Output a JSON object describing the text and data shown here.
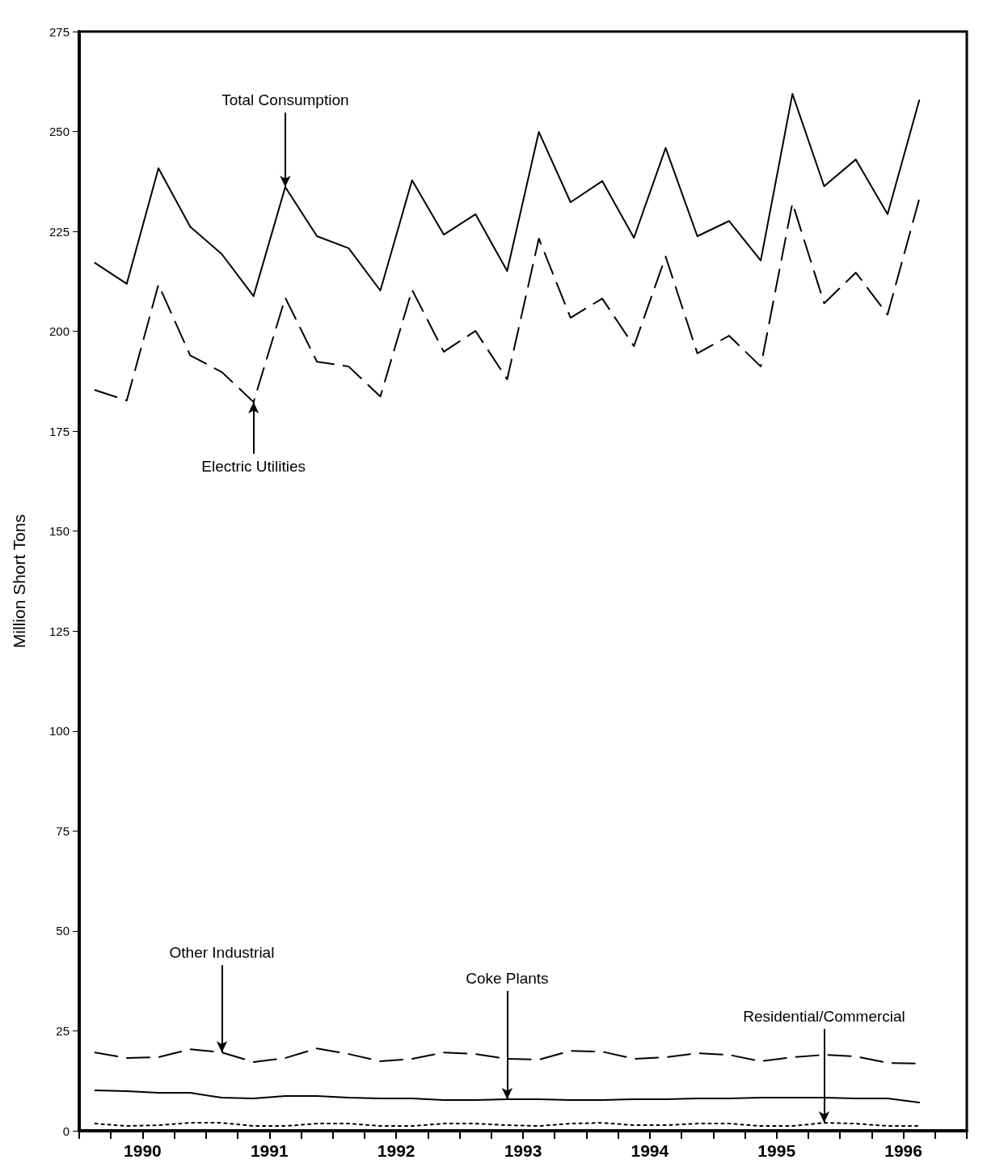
{
  "chart_data": {
    "type": "line",
    "ylabel": "Million Short Tons",
    "x": [
      1990.125,
      1990.375,
      1990.625,
      1990.875,
      1991.125,
      1991.375,
      1991.625,
      1991.875,
      1992.125,
      1992.375,
      1992.625,
      1992.875,
      1993.125,
      1993.375,
      1993.625,
      1993.875,
      1994.125,
      1994.375,
      1994.625,
      1994.875,
      1995.125,
      1995.375,
      1995.625,
      1995.875,
      1996.125,
      1996.375,
      1996.625
    ],
    "series": [
      {
        "color": "#000000",
        "line_style": "solid",
        "values": [
          217.1,
          211.9,
          240.8,
          226.2,
          219.3,
          208.8,
          236.1,
          223.8,
          220.8,
          210.2,
          237.8,
          224.2,
          229.3,
          215.1,
          249.9,
          232.3,
          237.6,
          223.4,
          245.9,
          223.8,
          227.6,
          217.7,
          259.4,
          236.3,
          243.0,
          229.3,
          257.8
        ]
      },
      {
        "color": "#000000",
        "line_style": "dashed",
        "values": [
          185.3,
          182.7,
          211.7,
          194.0,
          189.8,
          182.3,
          208.4,
          192.4,
          191.2,
          183.7,
          210.4,
          194.9,
          200.1,
          188.0,
          223.2,
          203.4,
          208.2,
          196.3,
          218.7,
          194.5,
          198.9,
          191.2,
          232.1,
          207.0,
          214.7,
          204.2,
          233.1
        ]
      },
      {
        "color": "#000000",
        "line_style": "dashed",
        "values": [
          19.6,
          18.2,
          18.4,
          20.4,
          19.6,
          17.2,
          18.2,
          20.6,
          19.2,
          17.4,
          18.0,
          19.6,
          19.2,
          18.0,
          17.8,
          20.0,
          19.8,
          18.0,
          18.4,
          19.4,
          19.0,
          17.4,
          18.4,
          19.0,
          18.6,
          17.0,
          16.8
        ]
      },
      {
        "color": "#000000",
        "line_style": "solid",
        "values": [
          10.1,
          9.9,
          9.5,
          9.5,
          8.3,
          8.1,
          8.7,
          8.7,
          8.3,
          8.1,
          8.1,
          7.7,
          7.7,
          7.9,
          7.9,
          7.7,
          7.7,
          7.9,
          7.9,
          8.1,
          8.1,
          8.3,
          8.3,
          8.3,
          8.1,
          8.1,
          7.1
        ]
      },
      {
        "color": "#000000",
        "line_style": "dotted",
        "values": [
          1.8,
          1.2,
          1.4,
          2.0,
          2.0,
          1.2,
          1.2,
          1.8,
          1.8,
          1.2,
          1.2,
          1.8,
          1.8,
          1.4,
          1.2,
          1.8,
          2.0,
          1.4,
          1.4,
          1.8,
          1.8,
          1.2,
          1.2,
          2.0,
          1.8,
          1.2,
          1.2
        ]
      }
    ],
    "xlim": [
      1990,
      1997
    ],
    "xticks": [
      {
        "value": 1990,
        "label": null
      },
      {
        "value": 1990.25,
        "label": null
      },
      {
        "value": 1990.5,
        "label": "1990"
      },
      {
        "value": 1990.75,
        "label": null
      },
      {
        "value": 1991,
        "label": null
      },
      {
        "value": 1991.25,
        "label": null
      },
      {
        "value": 1991.5,
        "label": "1991"
      },
      {
        "value": 1991.75,
        "label": null
      },
      {
        "value": 1992,
        "label": null
      },
      {
        "value": 1992.25,
        "label": null
      },
      {
        "value": 1992.5,
        "label": "1992"
      },
      {
        "value": 1992.75,
        "label": null
      },
      {
        "value": 1993,
        "label": null
      },
      {
        "value": 1993.25,
        "label": null
      },
      {
        "value": 1993.5,
        "label": "1993"
      },
      {
        "value": 1993.75,
        "label": null
      },
      {
        "value": 1994,
        "label": null
      },
      {
        "value": 1994.25,
        "label": null
      },
      {
        "value": 1994.5,
        "label": "1994"
      },
      {
        "value": 1994.75,
        "label": null
      },
      {
        "value": 1995,
        "label": null
      },
      {
        "value": 1995.25,
        "label": null
      },
      {
        "value": 1995.5,
        "label": "1995"
      },
      {
        "value": 1995.75,
        "label": null
      },
      {
        "value": 1996,
        "label": null
      },
      {
        "value": 1996.25,
        "label": null
      },
      {
        "value": 1996.5,
        "label": "1996"
      },
      {
        "value": 1996.75,
        "label": null
      },
      {
        "value": 1997,
        "label": null
      }
    ],
    "ylim": [
      0,
      275
    ],
    "yticks": [
      0,
      25,
      50,
      75,
      100,
      125,
      150,
      175,
      200,
      225,
      250,
      275
    ],
    "grid": false,
    "marker": "none",
    "annotations": [
      {
        "text": "Total Consumption",
        "x": 1991.625,
        "y": 236.1
      },
      {
        "text": "Electric Utilities",
        "x": 1991.375,
        "y": 182.3
      },
      {
        "text": "Other Industrial",
        "x": 1991.125,
        "y": 19.6
      },
      {
        "text": "Coke Plants",
        "x": 1993.375,
        "y": 7.9
      },
      {
        "text": "Residential/Commercial",
        "x": 1995.875,
        "y": 2.0
      }
    ]
  }
}
